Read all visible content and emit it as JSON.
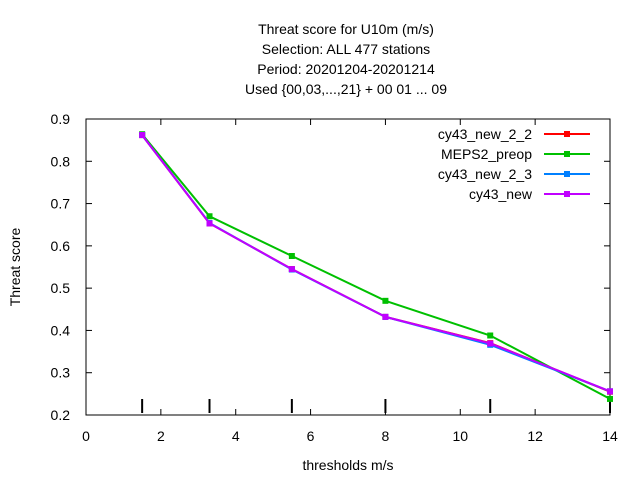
{
  "chart_data": {
    "type": "line",
    "title_lines": [
      "Threat score  for U10m (m/s)",
      "Selection: ALL    477 stations",
      "Period: 20201204-20201214",
      "Used {00,03,...,21} + 00 01 ... 09"
    ],
    "xlabel": "thresholds m/s",
    "ylabel": "Threat score",
    "xlim": [
      0,
      14
    ],
    "ylim": [
      0.2,
      0.9
    ],
    "x_ticks": [
      "0",
      "2",
      "4",
      "6",
      "8",
      "10",
      "12",
      "14"
    ],
    "y_ticks": [
      "0.2",
      "0.3",
      "0.4",
      "0.5",
      "0.6",
      "0.7",
      "0.8",
      "0.9"
    ],
    "grid": false,
    "legend_position": "top-right",
    "threshold_marks": [
      1.5,
      3.3,
      5.5,
      8.0,
      10.8,
      14.0
    ],
    "series": [
      {
        "name": "cy43_new_2_2",
        "color": "#ff0000",
        "x": [
          1.5,
          3.3,
          5.5,
          8.0,
          10.8,
          14.0
        ],
        "y": [
          0.862,
          0.653,
          0.545,
          0.432,
          0.37,
          0.255
        ]
      },
      {
        "name": "MEPS2_preop",
        "color": "#00c000",
        "x": [
          1.5,
          3.3,
          5.5,
          8.0,
          10.8,
          14.0
        ],
        "y": [
          0.864,
          0.67,
          0.576,
          0.47,
          0.388,
          0.238
        ]
      },
      {
        "name": "cy43_new_2_3",
        "color": "#0080ff",
        "x": [
          1.5,
          3.3,
          5.5,
          8.0,
          10.8,
          14.0
        ],
        "y": [
          0.862,
          0.654,
          0.544,
          0.432,
          0.366,
          0.256
        ]
      },
      {
        "name": "cy43_new",
        "color": "#c000ff",
        "x": [
          1.5,
          3.3,
          5.5,
          8.0,
          10.8,
          14.0
        ],
        "y": [
          0.862,
          0.653,
          0.545,
          0.432,
          0.369,
          0.256
        ]
      }
    ]
  }
}
